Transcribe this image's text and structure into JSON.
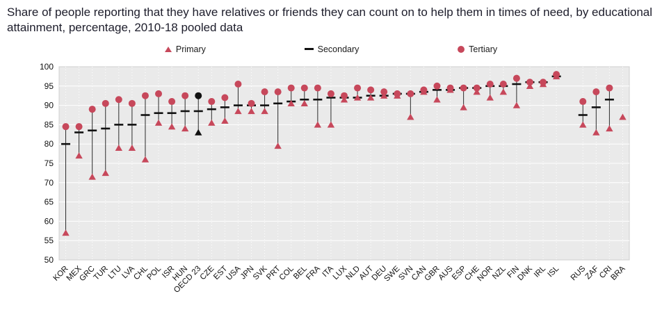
{
  "title": "Share of people reporting that they have relatives or friends they can count on to help them in times of need, by educational attainment, percentage, 2010-18 pooled data",
  "legend": [
    {
      "label": "Primary",
      "marker": "triangle",
      "color": "#c7485b"
    },
    {
      "label": "Secondary",
      "marker": "dash",
      "color": "#111111"
    },
    {
      "label": "Tertiary",
      "marker": "circle",
      "color": "#c7485b"
    }
  ],
  "colors": {
    "marker": "#c7485b",
    "highlight": "#111111",
    "dash": "#111111",
    "stem": "#2a2a2a",
    "plot_bg": "#eaeaea",
    "plot_border": "#cfcfcf",
    "grid": "#ffffff",
    "text": "#111111",
    "title_text": "#1d1d2b"
  },
  "chart_data": {
    "type": "scatter",
    "style": "lollipop-dot-plot",
    "title": "Share of people reporting that they have relatives or friends they can count on to help them in times of need, by educational attainment, percentage, 2010-18 pooled data",
    "xlabel": "",
    "ylabel": "",
    "ylim": [
      50,
      100
    ],
    "yticks": [
      50,
      55,
      60,
      65,
      70,
      75,
      80,
      85,
      90,
      95,
      100
    ],
    "grid": true,
    "legend_position": "top",
    "highlight_category": "OECD 23",
    "group_break_index": 38,
    "categories": [
      "KOR",
      "MEX",
      "GRC",
      "TUR",
      "LTU",
      "LVA",
      "CHL",
      "POL",
      "ISR",
      "HUN",
      "OECD 23",
      "CZE",
      "EST",
      "USA",
      "JPN",
      "SVK",
      "PRT",
      "COL",
      "BEL",
      "FRA",
      "ITA",
      "LUX",
      "NLD",
      "AUT",
      "DEU",
      "SWE",
      "SVN",
      "CAN",
      "GBR",
      "AUS",
      "ESP",
      "CHE",
      "NOR",
      "NZL",
      "FIN",
      "DNK",
      "IRL",
      "ISL",
      "RUS",
      "ZAF",
      "CRI",
      "BRA"
    ],
    "series": [
      {
        "name": "Primary",
        "marker": "triangle",
        "values": [
          57,
          77,
          71.5,
          72.5,
          79,
          79,
          76,
          85.5,
          84.5,
          84,
          83,
          85.5,
          86,
          88.5,
          88.5,
          88.5,
          79.5,
          90.5,
          90.5,
          85,
          85,
          91.5,
          92,
          92,
          92.5,
          92.5,
          87,
          93.5,
          91.5,
          94,
          89.5,
          93.5,
          92,
          93.5,
          90,
          95,
          95.5,
          97.5,
          85,
          83,
          84,
          87
        ]
      },
      {
        "name": "Secondary",
        "marker": "dash",
        "values": [
          80,
          83,
          83.5,
          84,
          85,
          85,
          87.5,
          88,
          88,
          88.5,
          88.5,
          89,
          89.5,
          90,
          90,
          90,
          90.5,
          91,
          91.5,
          91.5,
          92,
          92,
          92,
          92.5,
          92.5,
          93,
          93,
          93.5,
          94,
          94,
          94.5,
          94.5,
          95,
          95,
          95.5,
          96,
          96,
          97.5,
          87.5,
          89.5,
          91.5,
          null
        ]
      },
      {
        "name": "Tertiary",
        "marker": "circle",
        "values": [
          84.5,
          84.5,
          89,
          90.5,
          91.5,
          90.5,
          92.5,
          93,
          91,
          92.5,
          92.5,
          91,
          92,
          95.5,
          90.5,
          93.5,
          93.5,
          94.5,
          94.5,
          94.5,
          93,
          92.5,
          94.5,
          94,
          93.5,
          93,
          93,
          94,
          95,
          94.5,
          94.5,
          94.5,
          95.5,
          95.5,
          97,
          96,
          96,
          98,
          91,
          93.5,
          94.5,
          null
        ]
      }
    ]
  }
}
